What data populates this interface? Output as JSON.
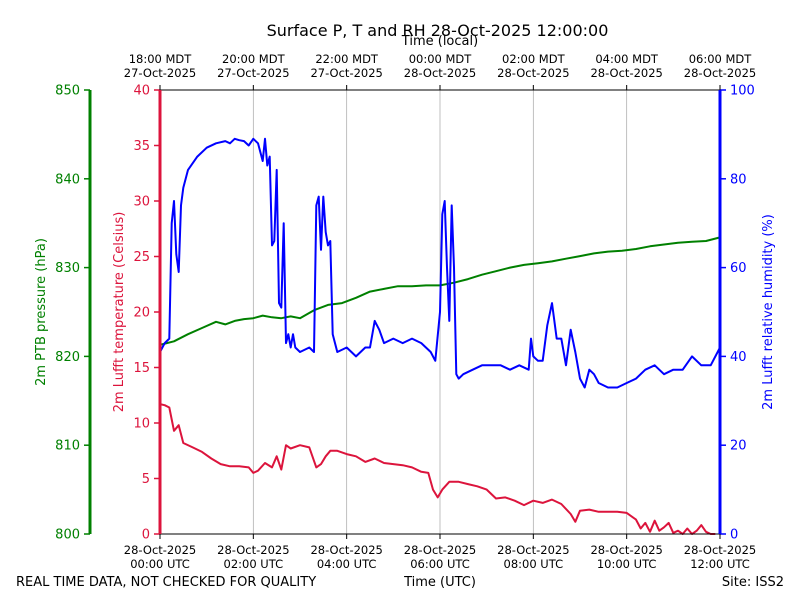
{
  "chart_data": {
    "type": "line",
    "title": "Surface P, T and RH 28-Oct-2025 12:00:00",
    "xlabel": "Time (UTC)",
    "x2label": "Time (local)",
    "footer_left": "REAL TIME DATA, NOT CHECKED FOR QUALITY",
    "footer_right": "Site: ISS2",
    "x_range_utc_hours": [
      0,
      12
    ],
    "x_ticks_utc": [
      {
        "hour": 0,
        "date": "28-Oct-2025",
        "time": "00:00 UTC"
      },
      {
        "hour": 2,
        "date": "28-Oct-2025",
        "time": "02:00 UTC"
      },
      {
        "hour": 4,
        "date": "28-Oct-2025",
        "time": "04:00 UTC"
      },
      {
        "hour": 6,
        "date": "28-Oct-2025",
        "time": "06:00 UTC"
      },
      {
        "hour": 8,
        "date": "28-Oct-2025",
        "time": "08:00 UTC"
      },
      {
        "hour": 10,
        "date": "28-Oct-2025",
        "time": "10:00 UTC"
      },
      {
        "hour": 12,
        "date": "28-Oct-2025",
        "time": "12:00 UTC"
      }
    ],
    "x_ticks_local": [
      {
        "hour": 0,
        "time": "18:00 MDT",
        "date": "27-Oct-2025"
      },
      {
        "hour": 2,
        "time": "20:00 MDT",
        "date": "27-Oct-2025"
      },
      {
        "hour": 4,
        "time": "22:00 MDT",
        "date": "27-Oct-2025"
      },
      {
        "hour": 6,
        "time": "00:00 MDT",
        "date": "28-Oct-2025"
      },
      {
        "hour": 8,
        "time": "02:00 MDT",
        "date": "28-Oct-2025"
      },
      {
        "hour": 10,
        "time": "04:00 MDT",
        "date": "28-Oct-2025"
      },
      {
        "hour": 12,
        "time": "06:00 MDT",
        "date": "28-Oct-2025"
      }
    ],
    "grid": "vertical",
    "axes": {
      "pressure": {
        "label": "2m PTB pressure (hPa)",
        "range": [
          800,
          850
        ],
        "ticks": [
          800,
          810,
          820,
          830,
          840,
          850
        ],
        "color": "#008000"
      },
      "temperature": {
        "label": "2m Lufft temperature (Celsius)",
        "range": [
          0,
          40
        ],
        "ticks": [
          0,
          5,
          10,
          15,
          20,
          25,
          30,
          35,
          40
        ],
        "color": "#dc143c"
      },
      "humidity": {
        "label": "2m Lufft relative humidity (%)",
        "range": [
          0,
          100
        ],
        "ticks": [
          0,
          20,
          40,
          60,
          80,
          100
        ],
        "color": "#0000ff"
      }
    },
    "series": [
      {
        "axis": "temperature",
        "color": "#dc143c",
        "x": [
          0,
          0.1,
          0.2,
          0.3,
          0.4,
          0.5,
          0.7,
          0.9,
          1.1,
          1.3,
          1.5,
          1.7,
          1.9,
          2.0,
          2.1,
          2.25,
          2.4,
          2.5,
          2.6,
          2.7,
          2.8,
          3.0,
          3.2,
          3.35,
          3.45,
          3.55,
          3.65,
          3.8,
          4.0,
          4.2,
          4.4,
          4.6,
          4.8,
          5.0,
          5.2,
          5.4,
          5.6,
          5.75,
          5.85,
          5.95,
          6.05,
          6.2,
          6.4,
          6.6,
          6.8,
          7.0,
          7.2,
          7.4,
          7.6,
          7.8,
          8.0,
          8.2,
          8.4,
          8.6,
          8.8,
          8.9,
          9.0,
          9.2,
          9.4,
          9.6,
          9.8,
          10.0,
          10.2,
          10.3,
          10.4,
          10.5,
          10.6,
          10.7,
          10.8,
          10.9,
          11.0,
          11.1,
          11.2,
          11.3,
          11.4,
          11.5,
          11.6,
          11.7,
          11.8,
          11.9
        ],
        "values": [
          11.7,
          11.6,
          11.4,
          9.3,
          9.8,
          8.2,
          7.8,
          7.4,
          6.8,
          6.3,
          6.1,
          6.1,
          6.0,
          5.5,
          5.7,
          6.4,
          6.0,
          7.0,
          5.8,
          8.0,
          7.7,
          8.0,
          7.8,
          6.0,
          6.3,
          7.0,
          7.5,
          7.5,
          7.2,
          7.0,
          6.5,
          6.8,
          6.4,
          6.3,
          6.2,
          6.0,
          5.6,
          5.5,
          4.0,
          3.3,
          4.0,
          4.7,
          4.7,
          4.5,
          4.3,
          4.0,
          3.2,
          3.3,
          3.0,
          2.6,
          3.0,
          2.8,
          3.1,
          2.7,
          1.8,
          1.1,
          2.1,
          2.2,
          2.0,
          2.0,
          2.0,
          1.9,
          1.3,
          0.5,
          1.0,
          0.2,
          1.2,
          0.3,
          0.6,
          1.0,
          0.1,
          0.3,
          0.0,
          0.5,
          0.0,
          0.3,
          0.8,
          0.2,
          0.0,
          0.0
        ]
      },
      {
        "axis": "pressure",
        "color": "#008000",
        "x": [
          0,
          0.3,
          0.6,
          0.9,
          1.2,
          1.4,
          1.6,
          1.8,
          2.0,
          2.2,
          2.4,
          2.6,
          2.8,
          3.0,
          3.3,
          3.6,
          3.9,
          4.2,
          4.5,
          4.8,
          5.1,
          5.4,
          5.7,
          6.0,
          6.3,
          6.6,
          6.9,
          7.2,
          7.5,
          7.8,
          8.1,
          8.4,
          8.7,
          9.0,
          9.3,
          9.6,
          9.9,
          10.2,
          10.5,
          10.8,
          11.1,
          11.4,
          11.7,
          12.0
        ],
        "values": [
          821.3,
          821.7,
          822.5,
          823.2,
          823.9,
          823.6,
          824.0,
          824.2,
          824.3,
          824.6,
          824.4,
          824.3,
          824.5,
          824.3,
          825.2,
          825.8,
          826.0,
          826.6,
          827.3,
          827.6,
          827.9,
          827.9,
          828.0,
          828.0,
          828.3,
          828.7,
          829.2,
          829.6,
          830.0,
          830.3,
          830.5,
          830.7,
          831.0,
          831.3,
          831.6,
          831.8,
          831.9,
          832.1,
          832.4,
          832.6,
          832.8,
          832.9,
          833.0,
          833.4
        ]
      },
      {
        "axis": "humidity",
        "color": "#0000ff",
        "x": [
          0,
          0.1,
          0.2,
          0.25,
          0.3,
          0.35,
          0.4,
          0.45,
          0.5,
          0.6,
          0.8,
          1.0,
          1.2,
          1.4,
          1.5,
          1.6,
          1.7,
          1.8,
          1.9,
          2.0,
          2.1,
          2.2,
          2.25,
          2.3,
          2.35,
          2.4,
          2.45,
          2.5,
          2.55,
          2.6,
          2.65,
          2.7,
          2.75,
          2.8,
          2.85,
          2.9,
          3.0,
          3.2,
          3.3,
          3.35,
          3.4,
          3.45,
          3.5,
          3.55,
          3.6,
          3.65,
          3.7,
          3.75,
          3.8,
          4.0,
          4.2,
          4.4,
          4.5,
          4.6,
          4.7,
          4.8,
          5.0,
          5.2,
          5.4,
          5.6,
          5.8,
          5.9,
          6.0,
          6.05,
          6.1,
          6.15,
          6.2,
          6.25,
          6.3,
          6.35,
          6.4,
          6.5,
          6.7,
          6.9,
          7.1,
          7.3,
          7.5,
          7.7,
          7.9,
          7.95,
          8.0,
          8.1,
          8.2,
          8.3,
          8.4,
          8.5,
          8.6,
          8.7,
          8.8,
          8.9,
          9.0,
          9.1,
          9.2,
          9.3,
          9.4,
          9.6,
          9.8,
          10.0,
          10.2,
          10.4,
          10.6,
          10.8,
          11.0,
          11.2,
          11.4,
          11.6,
          11.8,
          12.0
        ],
        "values": [
          41,
          43,
          44,
          70,
          75,
          63,
          59,
          74,
          78,
          82,
          85,
          87,
          88,
          88.5,
          88,
          89,
          88.7,
          88.5,
          87.5,
          89,
          88,
          84,
          89,
          83,
          85,
          65,
          66,
          82,
          52,
          51,
          70,
          43,
          45,
          42,
          45,
          42,
          41,
          42,
          41,
          74,
          76,
          64,
          76,
          68,
          65,
          66,
          45,
          43,
          41,
          42,
          40,
          42,
          42,
          48,
          46,
          43,
          44,
          43,
          44,
          43,
          41,
          39,
          50,
          72,
          75,
          60,
          48,
          74,
          60,
          36,
          35,
          36,
          37,
          38,
          38,
          38,
          37,
          38,
          37,
          44,
          40,
          39,
          39,
          47,
          52,
          44,
          44,
          38,
          46,
          41,
          35,
          33,
          37,
          36,
          34,
          33,
          33,
          34,
          35,
          37,
          38,
          36,
          37,
          37,
          40,
          38,
          38,
          42
        ]
      }
    ]
  }
}
